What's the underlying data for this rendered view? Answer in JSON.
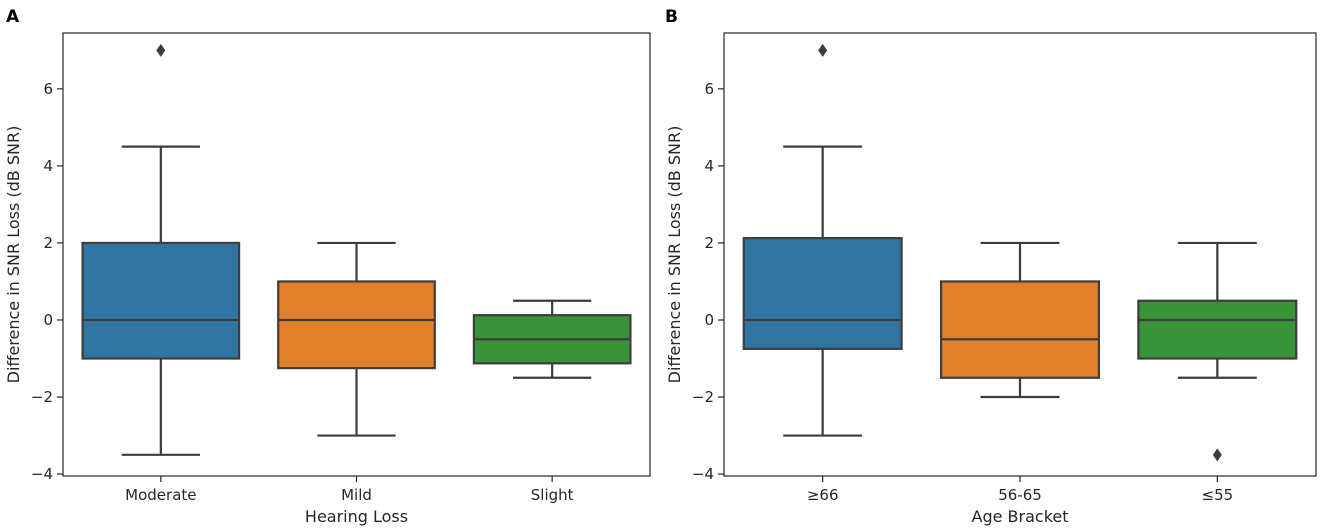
{
  "chart_data": [
    {
      "type": "box",
      "panel_label": "A",
      "xlabel": "Hearing Loss",
      "ylabel": "Difference in SNR Loss (dB SNR)",
      "ylim": [
        -4.05,
        7.45
      ],
      "yticks": [
        -4,
        -2,
        0,
        2,
        4,
        6
      ],
      "ytick_labels": [
        "−4",
        "−2",
        "0",
        "2",
        "4",
        "6"
      ],
      "grid": false,
      "categories": [
        "Moderate",
        "Mild",
        "Slight"
      ],
      "boxes": [
        {
          "category": "Moderate",
          "color": "#3274a1",
          "whisker_low": -3.5,
          "q1": -1.0,
          "median": 0.0,
          "q3": 2.0,
          "whisker_high": 4.5,
          "fliers": [
            7.0
          ]
        },
        {
          "category": "Mild",
          "color": "#e1812c",
          "whisker_low": -3.0,
          "q1": -1.25,
          "median": 0.0,
          "q3": 1.0,
          "whisker_high": 2.0,
          "fliers": []
        },
        {
          "category": "Slight",
          "color": "#3a923a",
          "whisker_low": -1.5,
          "q1": -1.125,
          "median": -0.5,
          "q3": 0.125,
          "whisker_high": 0.5,
          "fliers": []
        }
      ]
    },
    {
      "type": "box",
      "panel_label": "B",
      "xlabel": "Age Bracket",
      "ylabel": "Difference in SNR Loss (dB SNR)",
      "ylim": [
        -4.05,
        7.45
      ],
      "yticks": [
        -4,
        -2,
        0,
        2,
        4,
        6
      ],
      "ytick_labels": [
        "−4",
        "−2",
        "0",
        "2",
        "4",
        "6"
      ],
      "grid": false,
      "categories": [
        "≥66",
        "56-65",
        "≤55"
      ],
      "boxes": [
        {
          "category": "≥66",
          "color": "#3274a1",
          "whisker_low": -3.0,
          "q1": -0.75,
          "median": 0.0,
          "q3": 2.125,
          "whisker_high": 4.5,
          "fliers": [
            7.0
          ]
        },
        {
          "category": "56-65",
          "color": "#e1812c",
          "whisker_low": -2.0,
          "q1": -1.5,
          "median": -0.5,
          "q3": 1.0,
          "whisker_high": 2.0,
          "fliers": []
        },
        {
          "category": "≤55",
          "color": "#3a923a",
          "whisker_low": -1.5,
          "q1": -1.0,
          "median": 0.0,
          "q3": 0.5,
          "whisker_high": 2.0,
          "fliers": [
            -3.5
          ]
        }
      ]
    }
  ]
}
